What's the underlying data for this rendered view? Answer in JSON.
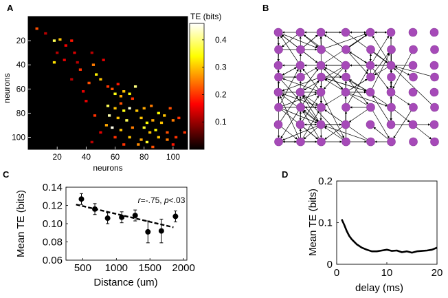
{
  "figure": {
    "panels": {
      "A": {
        "label": "A",
        "colorbar_title": "TE (bits)"
      },
      "B": {
        "label": "B"
      },
      "C": {
        "label": "C",
        "annotation_r": "r",
        "annotation_r_value": "=-.75, ",
        "annotation_p": "p",
        "annotation_p_value": "<.03"
      },
      "D": {
        "label": "D"
      }
    }
  },
  "chart_data": [
    {
      "panel": "A",
      "type": "heatmap",
      "title": "",
      "xlabel": "neurons",
      "ylabel": "neurons",
      "x_ticks": [
        20,
        40,
        60,
        80,
        100
      ],
      "y_ticks": [
        20,
        40,
        60,
        80,
        100
      ],
      "xlim": [
        0,
        110
      ],
      "ylim": [
        0,
        110
      ],
      "colorbar": {
        "label": "TE (bits)",
        "ticks": [
          0.1,
          0.2,
          0.3,
          0.4
        ],
        "range": [
          0,
          0.46
        ]
      },
      "cells": [
        [
          6,
          10,
          0.22
        ],
        [
          18,
          20,
          0.38
        ],
        [
          22,
          19,
          0.3
        ],
        [
          20,
          30,
          0.12
        ],
        [
          18,
          38,
          0.32
        ],
        [
          25,
          36,
          0.15
        ],
        [
          30,
          20,
          0.18
        ],
        [
          32,
          30,
          0.14
        ],
        [
          34,
          38,
          0.12
        ],
        [
          36,
          44,
          0.2
        ],
        [
          45,
          40,
          0.25
        ],
        [
          47,
          48,
          0.33
        ],
        [
          50,
          52,
          0.3
        ],
        [
          42,
          55,
          0.22
        ],
        [
          38,
          62,
          0.15
        ],
        [
          55,
          58,
          0.2
        ],
        [
          60,
          64,
          0.35
        ],
        [
          58,
          60,
          0.22
        ],
        [
          62,
          56,
          0.18
        ],
        [
          64,
          66,
          0.28
        ],
        [
          66,
          62,
          0.3
        ],
        [
          70,
          64,
          0.34
        ],
        [
          74,
          58,
          0.4
        ],
        [
          72,
          68,
          0.2
        ],
        [
          64,
          72,
          0.22
        ],
        [
          55,
          74,
          0.38
        ],
        [
          60,
          76,
          0.3
        ],
        [
          66,
          78,
          0.35
        ],
        [
          70,
          76,
          0.44
        ],
        [
          75,
          78,
          0.3
        ],
        [
          80,
          76,
          0.28
        ],
        [
          85,
          74,
          0.25
        ],
        [
          90,
          80,
          0.34
        ],
        [
          94,
          82,
          0.3
        ],
        [
          98,
          76,
          0.22
        ],
        [
          56,
          82,
          0.42
        ],
        [
          62,
          84,
          0.3
        ],
        [
          68,
          86,
          0.38
        ],
        [
          78,
          84,
          0.3
        ],
        [
          82,
          88,
          0.34
        ],
        [
          86,
          86,
          0.28
        ],
        [
          92,
          88,
          0.3
        ],
        [
          100,
          86,
          0.25
        ],
        [
          104,
          84,
          0.2
        ],
        [
          54,
          90,
          0.28
        ],
        [
          58,
          92,
          0.45
        ],
        [
          64,
          94,
          0.3
        ],
        [
          72,
          92,
          0.25
        ],
        [
          80,
          92,
          0.36
        ],
        [
          84,
          96,
          0.3
        ],
        [
          88,
          94,
          0.34
        ],
        [
          96,
          96,
          0.22
        ],
        [
          60,
          100,
          0.2
        ],
        [
          70,
          100,
          0.3
        ],
        [
          78,
          102,
          0.28
        ],
        [
          82,
          104,
          0.36
        ],
        [
          90,
          100,
          0.3
        ],
        [
          96,
          102,
          0.25
        ],
        [
          102,
          100,
          0.2
        ],
        [
          66,
          106,
          0.2
        ],
        [
          76,
          106,
          0.26
        ],
        [
          86,
          108,
          0.22
        ],
        [
          100,
          106,
          0.18
        ],
        [
          40,
          70,
          0.15
        ],
        [
          30,
          52,
          0.12
        ],
        [
          12,
          14,
          0.12
        ],
        [
          26,
          24,
          0.16
        ],
        [
          44,
          30,
          0.12
        ],
        [
          52,
          36,
          0.15
        ],
        [
          108,
          96,
          0.2
        ],
        [
          46,
          82,
          0.2
        ],
        [
          50,
          96,
          0.15
        ],
        [
          44,
          104,
          0.12
        ]
      ]
    },
    {
      "panel": "B",
      "type": "network",
      "grid_columns": 8,
      "grid_rows": 8,
      "node_color": "#a64ab8",
      "edge_color": "#000000"
    },
    {
      "panel": "C",
      "type": "scatter",
      "title": "",
      "xlabel": "Distance (um)",
      "ylabel": "Mean TE (bits)",
      "xlim": [
        250,
        2050
      ],
      "ylim": [
        0.06,
        0.14
      ],
      "x_ticks": [
        500,
        1000,
        1500,
        2000
      ],
      "y_ticks": [
        0.06,
        0.08,
        0.1,
        0.12,
        0.14
      ],
      "x": [
        480,
        680,
        870,
        1080,
        1280,
        1470,
        1670,
        1880
      ],
      "y": [
        0.127,
        0.116,
        0.106,
        0.107,
        0.109,
        0.091,
        0.092,
        0.108
      ],
      "yerr": [
        0.006,
        0.006,
        0.006,
        0.006,
        0.006,
        0.012,
        0.013,
        0.006
      ],
      "fit_line": {
        "style": "dashed",
        "x": [
          400,
          1850
        ],
        "y": [
          0.121,
          0.096
        ]
      },
      "annotation": "r=-.75, p<.03"
    },
    {
      "panel": "D",
      "type": "line",
      "title": "",
      "xlabel": "delay (ms)",
      "ylabel": "Mean TE (bits)",
      "xlim": [
        0,
        20
      ],
      "ylim": [
        0,
        0.2
      ],
      "x_ticks": [
        0,
        10,
        20
      ],
      "y_ticks": [
        0,
        0.1,
        0.2
      ],
      "x": [
        1,
        1.5,
        2,
        2.5,
        3,
        3.5,
        4,
        5,
        6,
        7,
        8,
        9,
        10,
        11,
        12,
        13,
        14,
        15,
        16,
        17,
        18,
        19,
        20
      ],
      "y": [
        0.108,
        0.095,
        0.08,
        0.068,
        0.06,
        0.054,
        0.048,
        0.04,
        0.035,
        0.031,
        0.031,
        0.033,
        0.035,
        0.032,
        0.033,
        0.029,
        0.031,
        0.028,
        0.031,
        0.032,
        0.033,
        0.035,
        0.04
      ]
    }
  ]
}
